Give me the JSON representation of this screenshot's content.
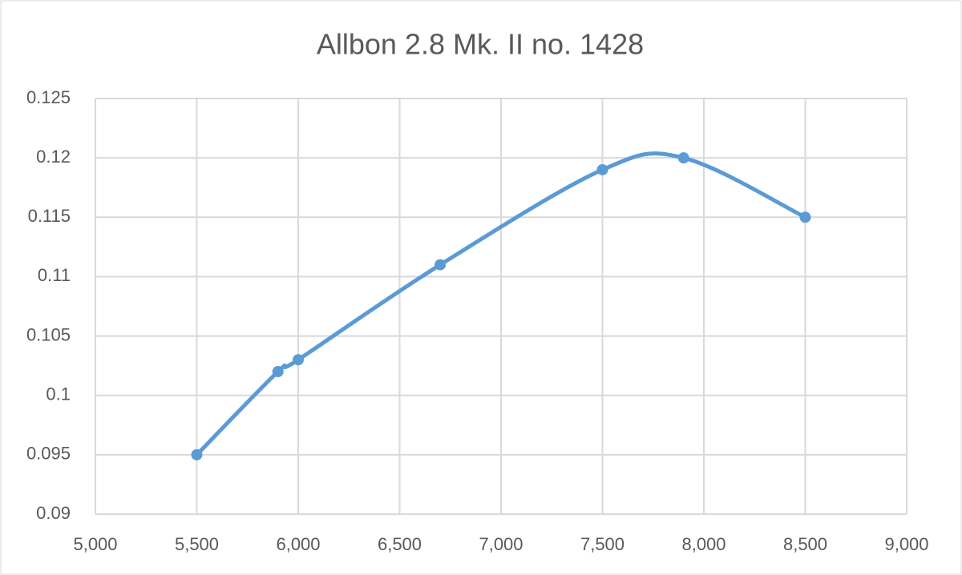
{
  "chart_data": {
    "type": "scatter",
    "smooth": true,
    "title": "Allbon 2.8 Mk. II no. 1428",
    "x": [
      5500,
      5900,
      6000,
      6700,
      7500,
      7900,
      8500
    ],
    "values": [
      0.095,
      0.102,
      0.103,
      0.111,
      0.119,
      0.12,
      0.115
    ],
    "color": "#5b9bd5",
    "xlim": [
      5000,
      9000
    ],
    "xticks": [
      {
        "value": 5000,
        "label": "5,000"
      },
      {
        "value": 5500,
        "label": "5,500"
      },
      {
        "value": 6000,
        "label": "6,000"
      },
      {
        "value": 6500,
        "label": "6,500"
      },
      {
        "value": 7000,
        "label": "7,000"
      },
      {
        "value": 7500,
        "label": "7,500"
      },
      {
        "value": 8000,
        "label": "8,000"
      },
      {
        "value": 8500,
        "label": "8,500"
      },
      {
        "value": 9000,
        "label": "9,000"
      }
    ],
    "ylim": [
      0.09,
      0.125
    ],
    "yticks": [
      0.09,
      0.095,
      0.1,
      0.105,
      0.11,
      0.115,
      0.12,
      0.125
    ],
    "grid": true
  }
}
